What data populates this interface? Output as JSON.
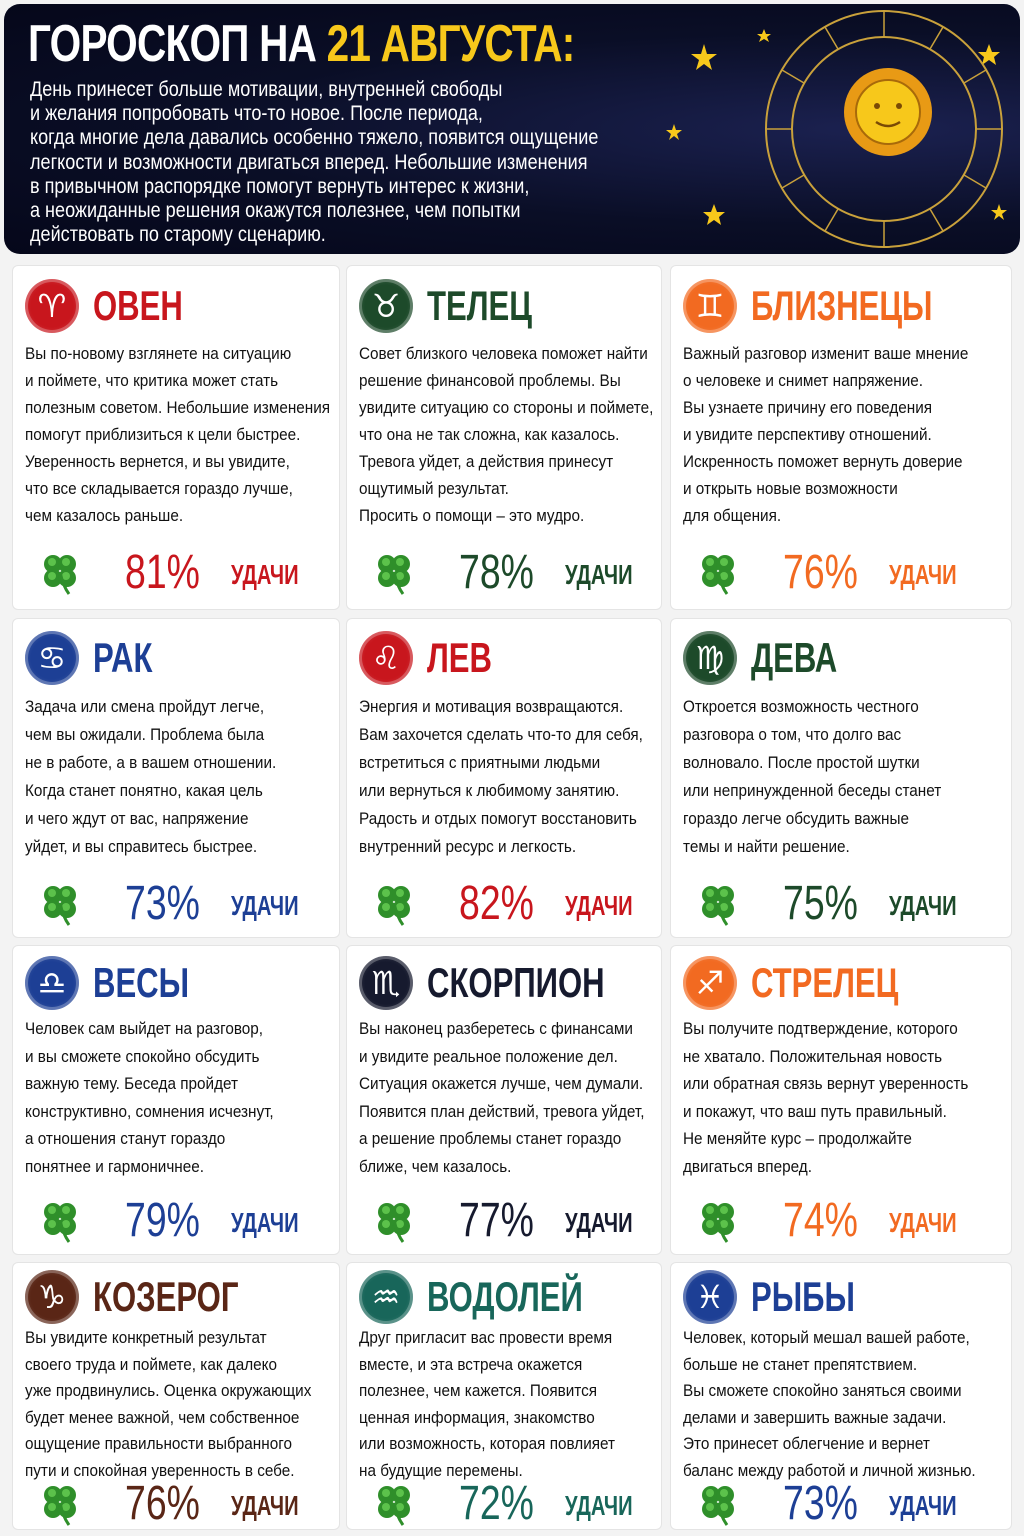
{
  "header": {
    "title_part1": "ГОРОСКОП НА ",
    "title_part2": "21 АВГУСТА:",
    "intro": [
      "День принесет больше мотивации, внутренней свободы",
      "и желания попробовать что-то новое. После периода,",
      "когда многие дела давались особенно тяжело, появится ощущение",
      "легкости и возможности двигаться вперед. Небольшие изменения",
      "в привычном распорядке помогут вернуть интерес к жизни,",
      "а неожиданные решения окажутся полезнее, чем попытки",
      "действовать по старому сценарию."
    ]
  },
  "signs": [
    {
      "name": "ОВЕН",
      "symbol": "♈",
      "color": "#c8161d",
      "lines": [
        "Вы по-новому взглянете на ситуацию",
        "и поймете, что критика может стать",
        "полезным советом. Небольшие изменения",
        "помогут приблизиться к цели быстрее.",
        "Уверенность вернется, и вы увидите,",
        "что все складывается гораздо лучше,",
        "чем казалось раньше."
      ],
      "luck": "81%",
      "luck_label": "УДАЧИ"
    },
    {
      "name": "ТЕЛЕЦ",
      "symbol": "♉",
      "color": "#1d4a2a",
      "lines": [
        "Совет близкого человека поможет найти",
        "решение финансовой проблемы. Вы",
        "увидите ситуацию со стороны и поймете,",
        "что она не так сложна, как казалось.",
        "Тревога уйдет, а действия принесут",
        "ощутимый результат.",
        "Просить о помощи – это мудро."
      ],
      "luck": "78%",
      "luck_label": "УДАЧИ"
    },
    {
      "name": "БЛИЗНЕЦЫ",
      "symbol": "♊",
      "color": "#f26a21",
      "lines": [
        "Важный разговор изменит ваше мнение",
        "о человеке и снимет напряжение.",
        "Вы узнаете причину его поведения",
        "и увидите перспективу отношений.",
        "Искренность поможет вернуть доверие",
        "и открыть новые возможности",
        "для общения."
      ],
      "luck": "76%",
      "luck_label": "УДАЧИ"
    },
    {
      "name": "РАК",
      "symbol": "♋",
      "color": "#1d3f95",
      "lines": [
        "Задача или смена пройдут легче,",
        "чем вы ожидали. Проблема была",
        "не в работе, а в вашем отношении.",
        "Когда станет понятно, какая цель",
        "и чего ждут от вас, напряжение",
        "уйдет, и вы справитесь быстрее."
      ],
      "luck": "73%",
      "luck_label": "УДАЧИ"
    },
    {
      "name": "ЛЕВ",
      "symbol": "♌",
      "color": "#c8161d",
      "lines": [
        "Энергия и мотивация возвращаются.",
        "Вам захочется сделать что-то для себя,",
        "встретиться с приятными людьми",
        "или вернуться к любимому занятию.",
        "Радость и отдых помогут восстановить",
        "внутренний ресурс и легкость."
      ],
      "luck": "82%",
      "luck_label": "УДАЧИ"
    },
    {
      "name": "ДЕВА",
      "symbol": "♍",
      "color": "#1d4a2a",
      "lines": [
        "Откроется возможность честного",
        "разговора о том, что долго вас",
        "волновало. После простой шутки",
        "или непринужденной беседы станет",
        "гораздо легче обсудить важные",
        "темы и найти решение."
      ],
      "luck": "75%",
      "luck_label": "УДАЧИ"
    },
    {
      "name": "ВЕСЫ",
      "symbol": "♎",
      "color": "#1d3f95",
      "lines": [
        "Человек сам выйдет на разговор,",
        "и вы сможете спокойно обсудить",
        "важную тему. Беседа пройдет",
        "конструктивно, сомнения исчезнут,",
        "а отношения станут гораздо",
        "понятнее и гармоничнее."
      ],
      "luck": "79%",
      "luck_label": "УДАЧИ"
    },
    {
      "name": "СКОРПИОН",
      "symbol": "♏",
      "color": "#161a2e",
      "lines": [
        "Вы наконец разберетесь с финансами",
        "и увидите реальное положение дел.",
        "Ситуация окажется лучше, чем думали.",
        "Появится план действий, тревога уйдет,",
        "а решение проблемы станет гораздо",
        "ближе, чем казалось."
      ],
      "luck": "77%",
      "luck_label": "УДАЧИ"
    },
    {
      "name": "СТРЕЛЕЦ",
      "symbol": "♐",
      "color": "#f26a21",
      "lines": [
        "Вы получите подтверждение, которого",
        "не хватало. Положительная новость",
        "или обратная связь вернут уверенность",
        "и покажут, что ваш путь правильный.",
        "Не меняйте курс – продолжайте",
        "двигаться вперед."
      ],
      "luck": "74%",
      "luck_label": "УДАЧИ"
    },
    {
      "name": "КОЗЕРОГ",
      "symbol": "♑",
      "color": "#5a2616",
      "lines": [
        "Вы увидите конкретный результат",
        "своего труда и поймете, как далеко",
        "уже продвинулись. Оценка окружающих",
        "будет менее важной, чем собственное",
        "ощущение правильности выбранного",
        "пути и спокойная уверенность в себе."
      ],
      "luck": "76%",
      "luck_label": "УДАЧИ"
    },
    {
      "name": "ВОДОЛЕЙ",
      "symbol": "♒",
      "color": "#18665a",
      "lines": [
        "Друг пригласит вас провести время",
        "вместе, и эта встреча окажется",
        "полезнее, чем кажется. Появится",
        "ценная информация, знакомство",
        "или возможность, которая повлияет",
        "на будущие перемены."
      ],
      "luck": "72%",
      "luck_label": "УДАЧИ"
    },
    {
      "name": "РЫБЫ",
      "symbol": "♓",
      "color": "#1d3f95",
      "lines": [
        "Человек, который мешал вашей работе,",
        "больше не станет препятствием.",
        "Вы сможете спокойно заняться своими",
        "делами и завершить важные задачи.",
        "Это принесет облегчение и вернет",
        "баланс между работой и личной жизнью."
      ],
      "luck": "73%",
      "luck_label": "УДАЧИ"
    }
  ]
}
